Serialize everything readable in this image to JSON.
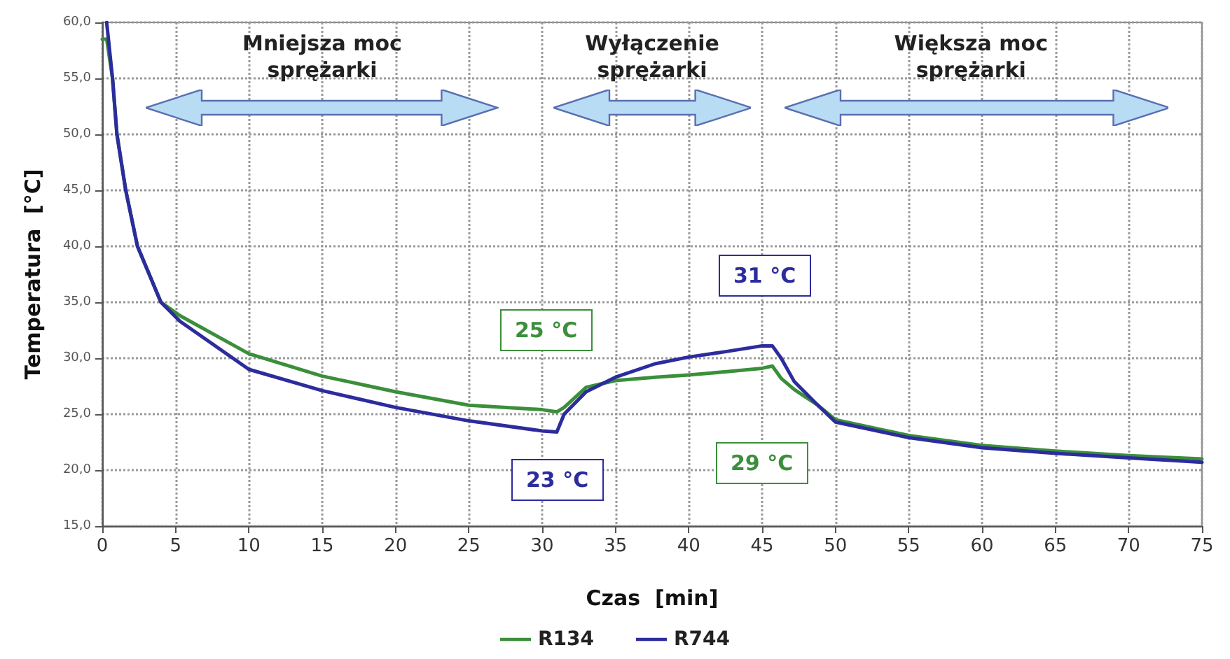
{
  "chart_data": {
    "type": "line",
    "xlabel": "Czas  [min]",
    "ylabel": "Temperatura  [°C]",
    "x": [
      0,
      0.3,
      0.7,
      1.0,
      1.6,
      2.4,
      4.0,
      5.3,
      10,
      15,
      20,
      25,
      30,
      31,
      31.5,
      33,
      35,
      37.7,
      40,
      42.6,
      45,
      45.7,
      46.3,
      47.2,
      48.8,
      50,
      55,
      60,
      65,
      70,
      75
    ],
    "series": [
      {
        "name": "R134",
        "color": "#3b8f3b",
        "values": [
          58.5,
          58.5,
          55,
          50,
          45,
          40,
          35,
          33.8,
          30.4,
          28.4,
          27,
          25.8,
          25.4,
          25.2,
          25.6,
          27.4,
          28,
          28.3,
          28.5,
          28.8,
          29.1,
          29.3,
          28.2,
          27.2,
          25.8,
          24.5,
          23.1,
          22.2,
          21.7,
          21.3,
          21.0
        ]
      },
      {
        "name": "R744",
        "color": "#2c2c9e",
        "values": [
          null,
          60,
          55,
          50,
          45,
          40,
          35,
          33.3,
          29,
          27.1,
          25.6,
          24.4,
          23.5,
          23.4,
          25,
          27,
          28.3,
          29.5,
          30.1,
          30.6,
          31.1,
          31.1,
          30,
          27.9,
          25.8,
          24.3,
          22.9,
          22,
          21.5,
          21.1,
          20.7
        ]
      }
    ],
    "xlim": [
      0,
      75
    ],
    "xticks": [
      0,
      5,
      10,
      15,
      20,
      25,
      30,
      35,
      40,
      45,
      50,
      55,
      60,
      65,
      70,
      75
    ],
    "ylim": [
      15,
      60
    ],
    "yticks": [
      {
        "value": 15,
        "label": "15,0"
      },
      {
        "value": 20,
        "label": "20,0"
      },
      {
        "value": 25,
        "label": "25,0"
      },
      {
        "value": 30,
        "label": "30,0"
      },
      {
        "value": 35,
        "label": "35,0"
      },
      {
        "value": 40,
        "label": "40,0"
      },
      {
        "value": 45,
        "label": "45,0"
      },
      {
        "value": 50,
        "label": "50,0"
      },
      {
        "value": 55,
        "label": "55,0"
      },
      {
        "value": 60,
        "label": "60,0"
      }
    ],
    "grid": true,
    "legend": "bottom",
    "marker": "none",
    "line_style": "solid",
    "annotations": [
      "Mniejsza moc sprężarki",
      "Wyłączenie sprężarki",
      "Większa moc sprężarki",
      "25 °C",
      "23 °C",
      "31 °C",
      "29 °C"
    ]
  }
}
